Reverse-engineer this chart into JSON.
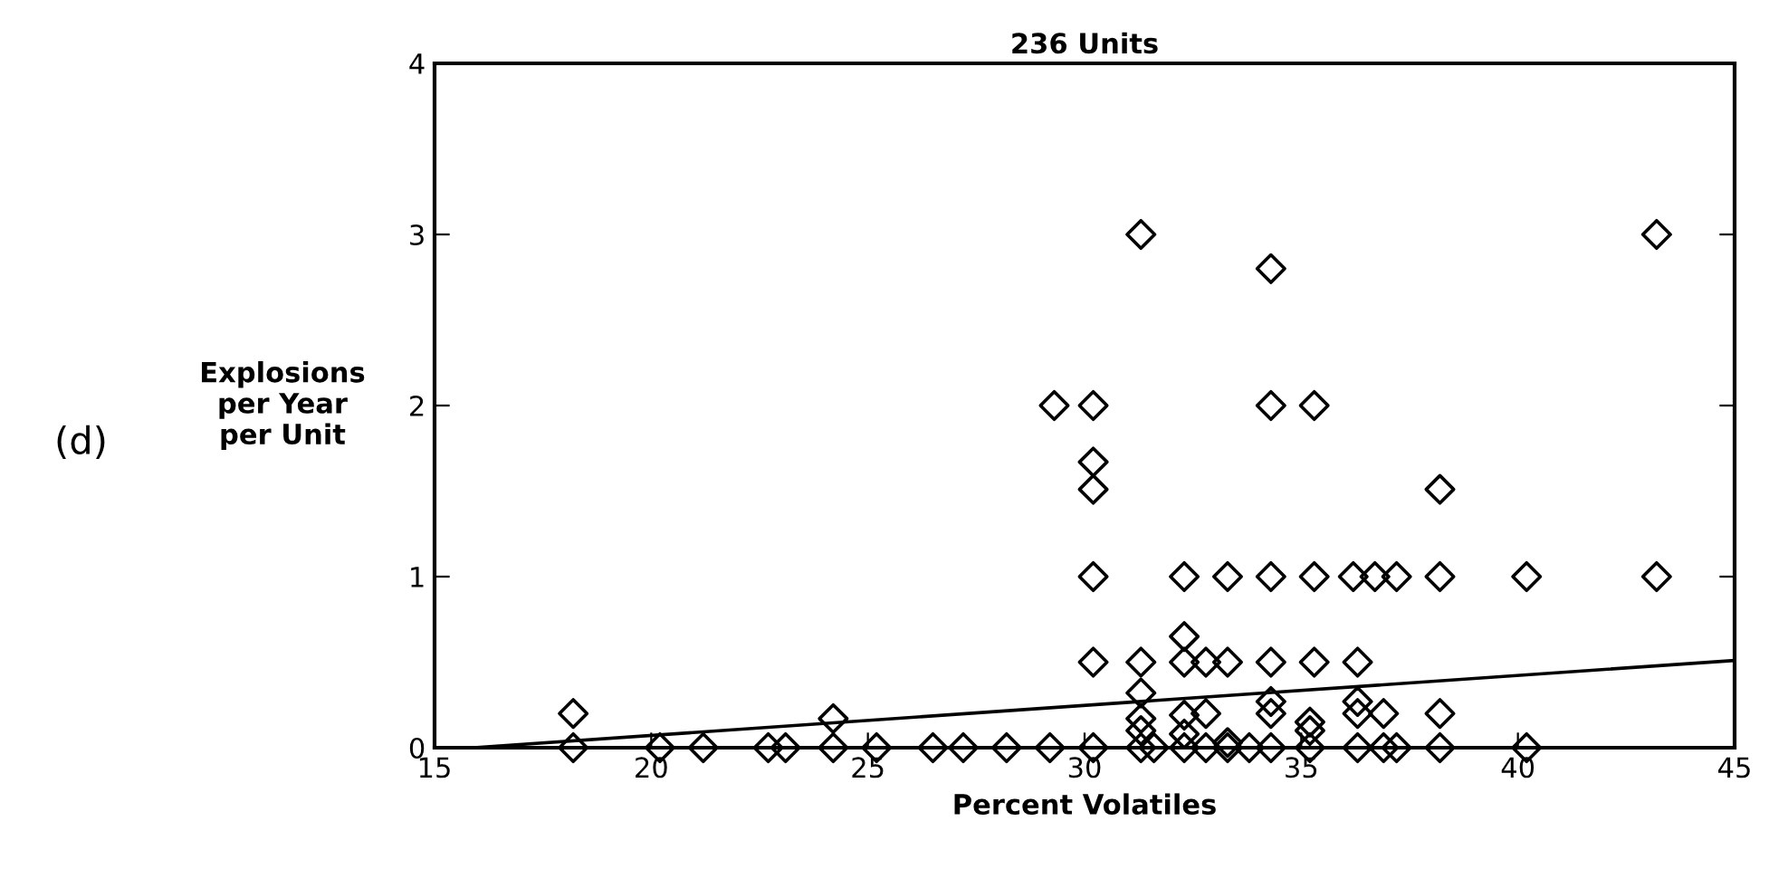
{
  "chart_data": {
    "type": "scatter",
    "title": "236 Units",
    "xlabel": "Percent Volatiles",
    "ylabel": "Explosions\nper Year\nper Unit",
    "annotations": [
      "(d)"
    ],
    "xlim": [
      15,
      45
    ],
    "ylim": [
      0,
      4
    ],
    "xticks": [
      15,
      20,
      25,
      30,
      35,
      40,
      45
    ],
    "yticks": [
      0,
      1,
      2,
      3,
      4
    ],
    "grid": false,
    "legend": false,
    "series": [
      {
        "marker": "diamond",
        "color": "#000000",
        "x": [
          18.2,
          20.2,
          21.2,
          22.7,
          23.1,
          24.2,
          25.2,
          26.5,
          27.2,
          28.2,
          29.2,
          30.2,
          31.3,
          31.6,
          32.3,
          32.8,
          33.3,
          33.8,
          34.3,
          35.2,
          36.3,
          36.9,
          37.2,
          38.2,
          40.2,
          18.2,
          24.2,
          30.2,
          32.3,
          33.3,
          34.3,
          35.3,
          36.2,
          36.7,
          37.2,
          38.2,
          40.2,
          43.2,
          30.2,
          31.3,
          32.3,
          32.8,
          33.3,
          34.3,
          35.3,
          36.3,
          32.3,
          31.3,
          31.3,
          31.3,
          32.3,
          32.3,
          32.8,
          33.3,
          34.3,
          34.3,
          35.2,
          35.2,
          36.3,
          36.3,
          36.9,
          38.2,
          31.3,
          34.3,
          43.2,
          29.3,
          30.2,
          34.3,
          35.3,
          30.2,
          30.2,
          38.2
        ],
        "values": [
          0,
          0,
          0,
          0,
          0,
          0,
          0,
          0,
          0,
          0,
          0,
          0,
          0,
          0,
          0,
          0,
          0,
          0,
          0,
          0,
          0,
          0,
          0,
          0,
          0,
          0.2,
          0.17,
          1,
          1,
          1,
          1,
          1,
          1,
          1,
          1,
          1,
          1,
          1,
          0.5,
          0.5,
          0.5,
          0.5,
          0.5,
          0.5,
          0.5,
          0.5,
          0.65,
          0.32,
          0.17,
          0.1,
          0.19,
          0.08,
          0.2,
          0.03,
          0.27,
          0.2,
          0.15,
          0.1,
          0.27,
          0.2,
          0.2,
          0.2,
          3,
          2.8,
          3,
          2,
          2,
          2,
          2,
          1.67,
          1.51,
          1.51
        ]
      },
      {
        "type": "line",
        "marker": "none",
        "color": "#000000",
        "x": [
          15.9,
          45
        ],
        "values": [
          0,
          0.51
        ]
      }
    ]
  }
}
